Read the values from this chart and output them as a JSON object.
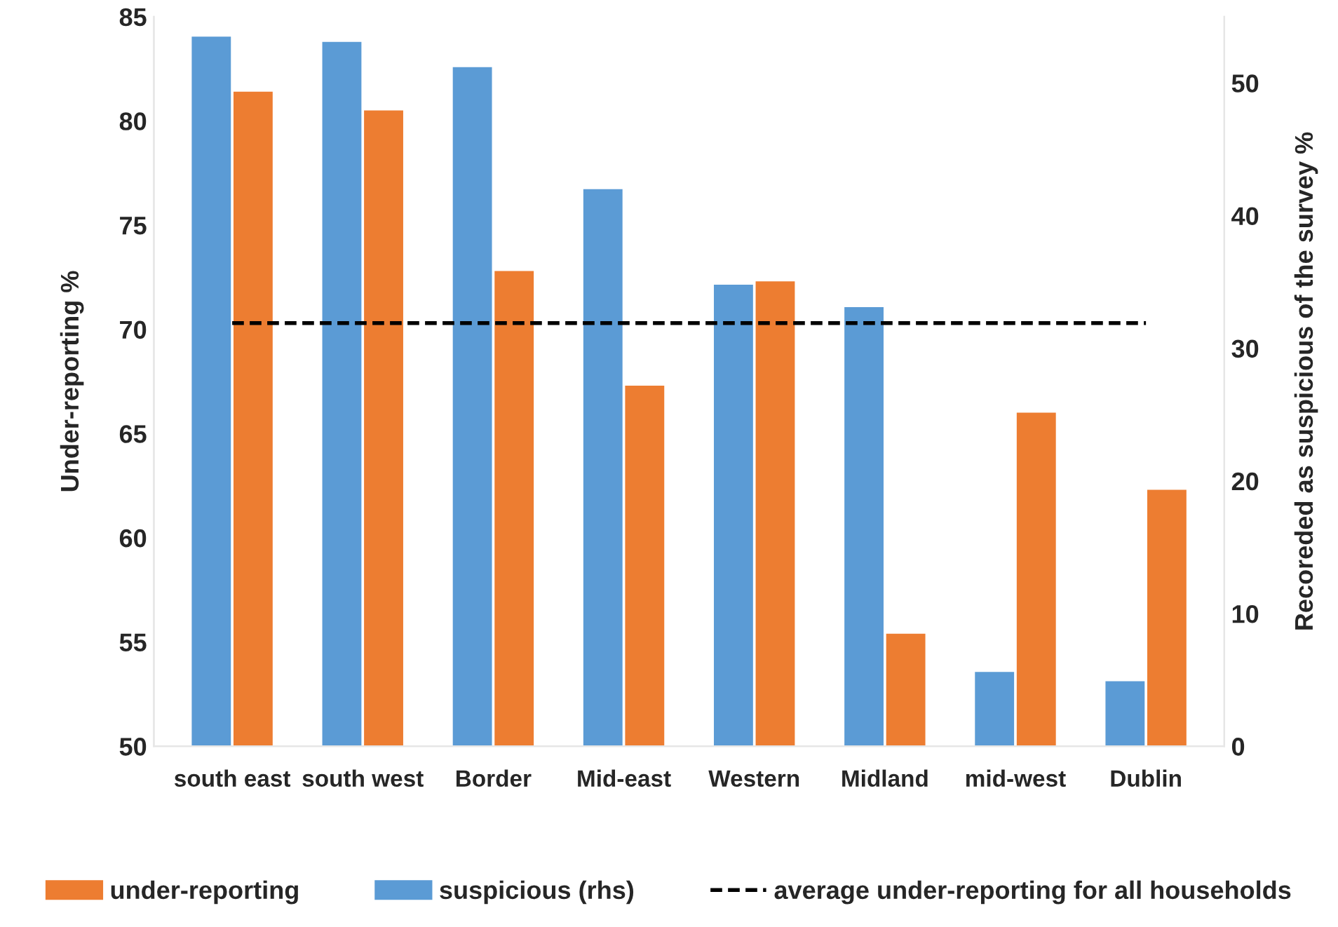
{
  "chart_data": {
    "type": "bar",
    "categories": [
      "south east",
      "south west",
      "Border",
      "Mid-east",
      "Western",
      "Midland",
      "mid-west",
      "Dublin"
    ],
    "series": [
      {
        "name": "suspicious (rhs)",
        "color": "#5b9bd5",
        "axis": "y2",
        "values": [
          53.5,
          53.1,
          51.2,
          42.0,
          34.8,
          33.1,
          5.6,
          4.9
        ]
      },
      {
        "name": "under-reporting",
        "color": "#ed7d31",
        "values": [
          81.4,
          80.5,
          72.8,
          67.3,
          72.3,
          55.4,
          66.0,
          62.3
        ]
      }
    ],
    "ref_lines": [
      {
        "axis": "y",
        "value": 70.3,
        "label": "average under-reporting for all households",
        "color": "#000000",
        "line_style": "dashed"
      }
    ],
    "ylabel": "Under-reporting %",
    "y2label": "Recoreded as suspicious of the survey %",
    "ylim": [
      50,
      85
    ],
    "yticks": [
      50,
      55,
      60,
      65,
      70,
      75,
      80,
      85
    ],
    "y2lim": [
      0,
      55
    ],
    "y2ticks": [
      0,
      10,
      20,
      30,
      40,
      50
    ],
    "grid": false,
    "legend": "bottom"
  }
}
